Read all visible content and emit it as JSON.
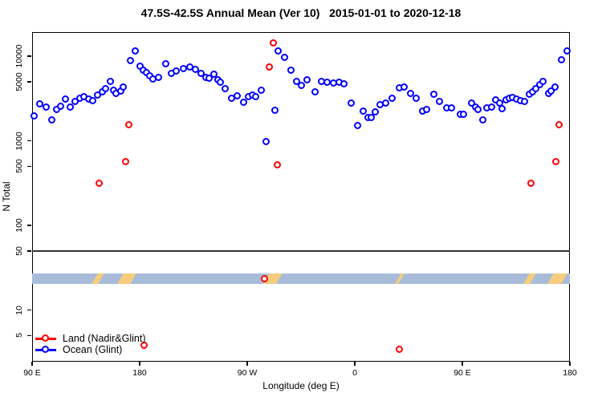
{
  "title": "47.5S-42.5S Annual Mean (Ver 10)   2015-01-01 to 2020-12-18",
  "chart_data": {
    "type": "scatter",
    "title": "47.5S-42.5S Annual Mean (Ver 10)   2015-01-01 to 2020-12-18",
    "xlabel": "Longitude (deg E)",
    "ylabel": "N Total",
    "grid": false,
    "legend_position": "bottom-left",
    "x_axis": {
      "note": "longitude axis wraps eastward starting at 90E",
      "range_deg": [
        90,
        540
      ],
      "ticks": [
        {
          "deg": 90,
          "label": "90 E"
        },
        {
          "deg": 180,
          "label": "180"
        },
        {
          "deg": 270,
          "label": "90 W"
        },
        {
          "deg": 360,
          "label": "0"
        },
        {
          "deg": 450,
          "label": "90 E"
        },
        {
          "deg": 540,
          "label": "180"
        }
      ]
    },
    "y_axis": {
      "scale": "log10",
      "range": [
        2.45,
        19250
      ],
      "ticks": [
        {
          "v": 10000,
          "label": "10000"
        },
        {
          "v": 5000,
          "label": "5000"
        },
        {
          "v": 1000,
          "label": "1000"
        },
        {
          "v": 500,
          "label": "500"
        },
        {
          "v": 100,
          "label": "100"
        },
        {
          "v": 50,
          "label": "50"
        },
        {
          "v": 10,
          "label": "10"
        },
        {
          "v": 5,
          "label": "5"
        }
      ]
    },
    "reference_line": {
      "value": 50,
      "color": "#333333"
    },
    "map_strip": {
      "meaning": "land/ocean geography band for latitude zone",
      "value_range": [
        20.4,
        27
      ],
      "ocean_color": "#a8bcd9",
      "land_color": "#f6cc7d",
      "land_patches_deg": [
        [
          142.4,
          147.8
        ],
        [
          163.9,
          174.6
        ],
        [
          286.1,
          296.9
        ],
        [
          396.2,
          398.9
        ],
        [
          503.7,
          509.1
        ],
        [
          523.9,
          535.3
        ]
      ]
    },
    "series": [
      {
        "name": "Land (Nadir&Glint)",
        "color": "#ff0000",
        "points": [
          [
            146.6,
            309
          ],
          [
            168.8,
            557
          ],
          [
            171.3,
            1530
          ],
          [
            184.0,
            3.8
          ],
          [
            284.8,
            23
          ],
          [
            288.6,
            7320
          ],
          [
            292.2,
            14200
          ],
          [
            295.5,
            518
          ],
          [
            397.8,
            3.4
          ],
          [
            507.5,
            309
          ],
          [
            528.8,
            557
          ],
          [
            531.5,
            1530
          ]
        ]
      },
      {
        "name": "Ocean (Glint)",
        "color": "#0000ff",
        "points": [
          [
            92.2,
            1950
          ],
          [
            96.7,
            2700
          ],
          [
            101.9,
            2470
          ],
          [
            106.8,
            1750
          ],
          [
            110.8,
            2330
          ],
          [
            114.0,
            2530
          ],
          [
            118.0,
            3080
          ],
          [
            122.4,
            2460
          ],
          [
            126.5,
            2860
          ],
          [
            130.3,
            3130
          ],
          [
            133.7,
            3290
          ],
          [
            137.7,
            3080
          ],
          [
            141.0,
            2940
          ],
          [
            145.3,
            3440
          ],
          [
            148.9,
            3750
          ],
          [
            152.0,
            4120
          ],
          [
            156.0,
            5000
          ],
          [
            158.7,
            3940
          ],
          [
            160.5,
            3580
          ],
          [
            164.5,
            3830
          ],
          [
            166.8,
            4250
          ],
          [
            172.4,
            8770
          ],
          [
            176.6,
            11400
          ],
          [
            180.7,
            7480
          ],
          [
            183.6,
            6700
          ],
          [
            185.8,
            6360
          ],
          [
            188.5,
            5790
          ],
          [
            191.4,
            5290
          ],
          [
            195.9,
            5490
          ],
          [
            201.9,
            8010
          ],
          [
            206.8,
            6180
          ],
          [
            210.9,
            6560
          ],
          [
            216.9,
            7050
          ],
          [
            222.1,
            7310
          ],
          [
            227.2,
            6950
          ],
          [
            231.7,
            6220
          ],
          [
            235.5,
            5560
          ],
          [
            238.4,
            5360
          ],
          [
            242.2,
            6080
          ],
          [
            246.0,
            5170
          ],
          [
            247.8,
            4880
          ],
          [
            251.9,
            4090
          ],
          [
            257.2,
            3130
          ],
          [
            261.9,
            3360
          ],
          [
            267.3,
            2800
          ],
          [
            271.3,
            3310
          ],
          [
            274.7,
            3410
          ],
          [
            277.6,
            3290
          ],
          [
            282.1,
            3940
          ],
          [
            285.9,
            960
          ],
          [
            293.7,
            2250
          ],
          [
            296.2,
            11400
          ],
          [
            301.6,
            9520
          ],
          [
            306.7,
            6700
          ],
          [
            311.6,
            5000
          ],
          [
            315.5,
            4490
          ],
          [
            320.6,
            5170
          ],
          [
            327.1,
            3750
          ],
          [
            332.5,
            5000
          ],
          [
            337.4,
            4830
          ],
          [
            342.3,
            4760
          ],
          [
            347.0,
            4880
          ],
          [
            351.5,
            4650
          ],
          [
            357.1,
            2740
          ],
          [
            362.5,
            1490
          ],
          [
            367.6,
            2200
          ],
          [
            371.2,
            1860
          ],
          [
            374.3,
            1850
          ],
          [
            377.3,
            2170
          ],
          [
            381.7,
            2660
          ],
          [
            386.2,
            2740
          ],
          [
            391.6,
            3160
          ],
          [
            397.8,
            4180
          ],
          [
            401.9,
            4290
          ],
          [
            406.8,
            3560
          ],
          [
            411.7,
            3160
          ],
          [
            416.9,
            2200
          ],
          [
            420.6,
            2300
          ],
          [
            426.5,
            3480
          ],
          [
            431.4,
            2880
          ],
          [
            437.2,
            2420
          ],
          [
            441.4,
            2420
          ],
          [
            448.6,
            2030
          ],
          [
            451.5,
            2030
          ],
          [
            458.2,
            2740
          ],
          [
            461.2,
            2470
          ],
          [
            463.4,
            2330
          ],
          [
            467.2,
            1750
          ],
          [
            471.1,
            2420
          ],
          [
            474.6,
            2470
          ],
          [
            478.4,
            3010
          ],
          [
            481.3,
            2740
          ],
          [
            483.5,
            2360
          ],
          [
            486.9,
            3010
          ],
          [
            489.6,
            3130
          ],
          [
            492.5,
            3240
          ],
          [
            495.6,
            3080
          ],
          [
            499.2,
            2940
          ],
          [
            502.3,
            2860
          ],
          [
            506.8,
            3480
          ],
          [
            509.0,
            3750
          ],
          [
            511.9,
            4120
          ],
          [
            514.9,
            4560
          ],
          [
            517.6,
            5000
          ],
          [
            522.5,
            3560
          ],
          [
            524.7,
            3840
          ],
          [
            527.7,
            4250
          ],
          [
            533.3,
            8870
          ],
          [
            538.3,
            11400
          ]
        ]
      }
    ]
  }
}
